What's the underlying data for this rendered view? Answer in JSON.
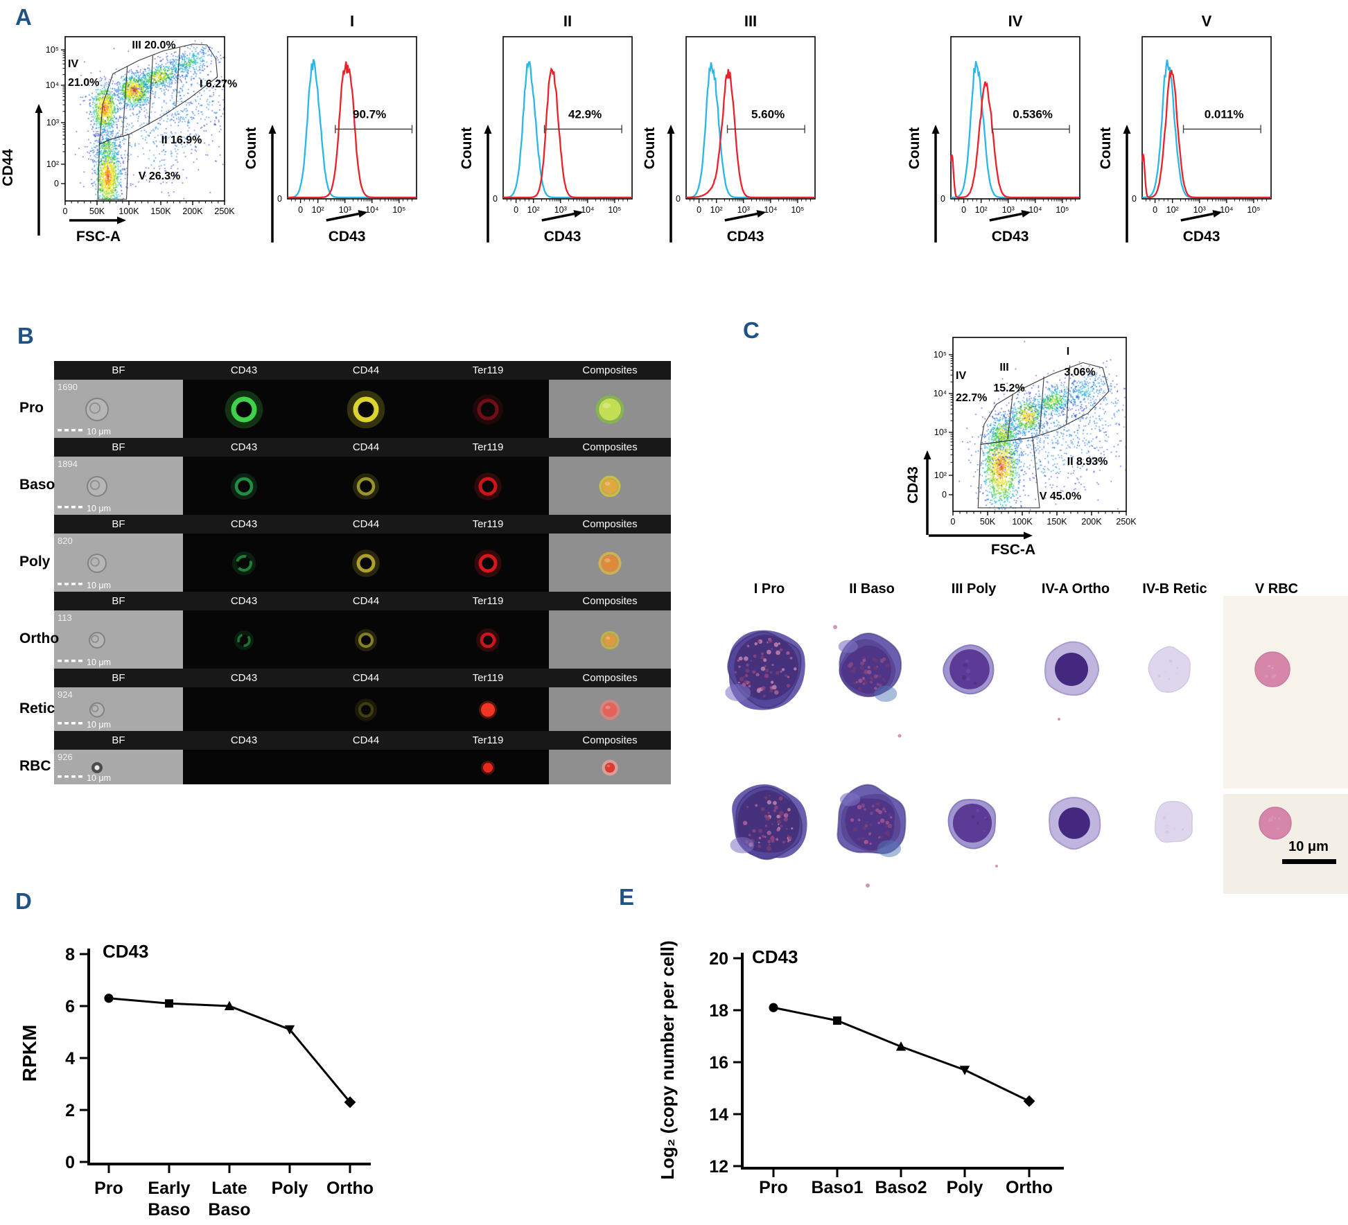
{
  "figure": {
    "panel_labels": {
      "A": "A",
      "B": "B",
      "C": "C",
      "D": "D",
      "E": "E"
    },
    "accent_color": "#1F5386"
  },
  "panelA": {
    "scatter": {
      "xlabel": "FSC-A",
      "ylabel": "CD44",
      "xticks": [
        "0",
        "50K",
        "100K",
        "150K",
        "200K",
        "250K"
      ],
      "yticks": [
        "10⁵",
        "10⁴",
        "10³",
        "10²",
        "0"
      ],
      "gates": [
        {
          "name": "IV",
          "pct": "21.0%"
        },
        {
          "name": "III",
          "pct": "20.0%"
        },
        {
          "name": "I",
          "pct": "6.27%"
        },
        {
          "name": "II",
          "pct": "16.9%"
        },
        {
          "name": "V",
          "pct": "26.3%"
        }
      ]
    },
    "histograms": [
      {
        "title": "I",
        "pct": "90.7%"
      },
      {
        "title": "II",
        "pct": "42.9%"
      },
      {
        "title": "III",
        "pct": "5.60%"
      },
      {
        "title": "IV",
        "pct": "0.536%"
      },
      {
        "title": "V",
        "pct": "0.011%"
      }
    ],
    "hist_axis": {
      "ylabel": "Count",
      "xlabel": "CD43",
      "y0": "0",
      "xticks": [
        "0",
        "10²",
        "10³",
        "10⁴",
        "10⁵"
      ]
    },
    "curve_colors": {
      "control": "#29B6E8",
      "stain": "#EC2028"
    }
  },
  "panelB": {
    "columns": [
      "BF",
      "CD43",
      "CD44",
      "Ter119",
      "Composites"
    ],
    "rows": [
      {
        "name": "Pro",
        "event": "1690",
        "scale": "10 μm"
      },
      {
        "name": "Baso",
        "event": "1894",
        "scale": "10 μm"
      },
      {
        "name": "Poly",
        "event": "820",
        "scale": "10 μm"
      },
      {
        "name": "Ortho",
        "event": "113",
        "scale": "10 μm"
      },
      {
        "name": "Retic",
        "event": "924",
        "scale": "10 μm"
      },
      {
        "name": "RBC",
        "event": "926",
        "scale": "10 μm"
      }
    ],
    "channel_colors": {
      "CD43": "#2FB43F",
      "CD44": "#D6CE2E",
      "Ter119": "#E01A20"
    }
  },
  "panelC": {
    "scatter": {
      "xlabel": "FSC-A",
      "ylabel": "CD43",
      "xticks": [
        "0",
        "50K",
        "100K",
        "150K",
        "200K",
        "250K"
      ],
      "yticks": [
        "10⁵",
        "10⁴",
        "10³",
        "10²",
        "0"
      ],
      "gates": [
        {
          "name": "IV",
          "pct": "22.7%"
        },
        {
          "name": "III",
          "pct": "15.2%"
        },
        {
          "name": "I",
          "pct": "3.06%"
        },
        {
          "name": "II",
          "pct": "8.93%"
        },
        {
          "name": "V",
          "pct": "45.0%"
        }
      ]
    },
    "cell_types": [
      "I Pro",
      "II Baso",
      "III Poly",
      "IV-A Ortho",
      "IV-B Retic",
      "V RBC"
    ],
    "scale_bar": "10 μm"
  },
  "chart_data": [
    {
      "id": "D",
      "type": "line",
      "title": "CD43",
      "ylabel": "RPKM",
      "categories": [
        "Pro",
        "Early\nBaso",
        "Late\nBaso",
        "Poly",
        "Ortho"
      ],
      "values": [
        6.3,
        6.1,
        6.0,
        5.1,
        2.3
      ],
      "ylim": [
        0,
        8
      ],
      "yticks": [
        0,
        2,
        4,
        6,
        8
      ],
      "markers": [
        "circle",
        "square",
        "triangle-up",
        "triangle-down",
        "diamond"
      ],
      "grid": false,
      "legend": "none"
    },
    {
      "id": "E",
      "type": "line",
      "title": "CD43",
      "ylabel": "Log₂ (copy number per cell)",
      "categories": [
        "Pro",
        "Baso1",
        "Baso2",
        "Poly",
        "Ortho"
      ],
      "values": [
        18.1,
        17.6,
        16.6,
        15.7,
        14.5
      ],
      "ylim": [
        12,
        20
      ],
      "yticks": [
        12,
        14,
        16,
        18,
        20
      ],
      "markers": [
        "circle",
        "square",
        "triangle-up",
        "triangle-down",
        "diamond"
      ],
      "grid": false,
      "legend": "none"
    }
  ]
}
